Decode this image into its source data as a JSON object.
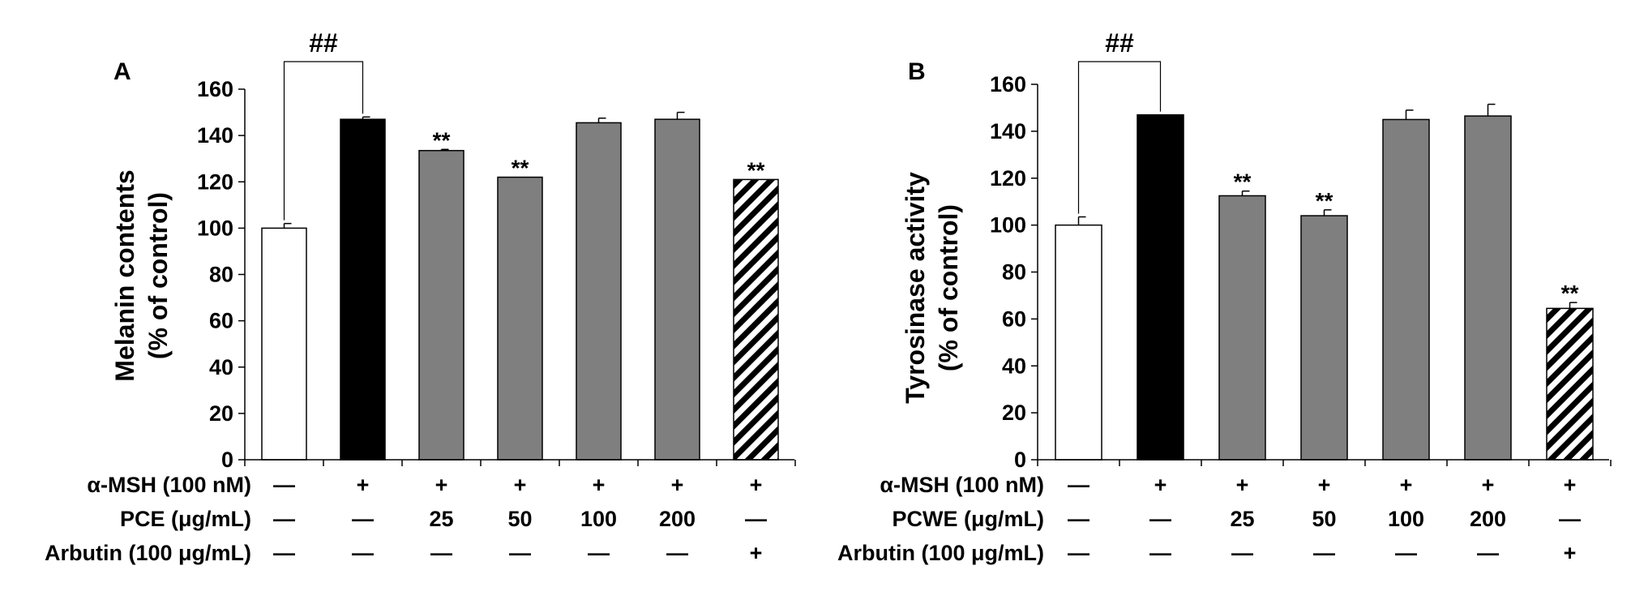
{
  "chart_data": [
    {
      "type": "bar",
      "panel_label": "A",
      "ylabel_line1": "Melanin contents",
      "ylabel_line2": "(% of control)",
      "ylim": [
        0,
        160
      ],
      "yticks": [
        "0",
        "20",
        "40",
        "60",
        "80",
        "100",
        "120",
        "140",
        "160"
      ],
      "values": [
        100,
        147,
        133.5,
        122,
        145.5,
        147,
        121
      ],
      "errors": [
        2,
        1,
        0.5,
        0,
        2,
        3,
        0
      ],
      "fills": [
        "white",
        "black",
        "gray",
        "gray",
        "gray",
        "gray",
        "hatch"
      ],
      "significance": [
        "",
        "",
        "**",
        "**",
        "",
        "",
        "**"
      ],
      "bracket_label": "##",
      "bracket_pair": [
        0,
        1
      ],
      "rows": [
        {
          "label": "α-MSH (100 nM)",
          "cells": [
            "—",
            "+",
            "+",
            "+",
            "+",
            "+",
            "+"
          ]
        },
        {
          "label": "PCE (μg/mL)",
          "cells": [
            "—",
            "—",
            "25",
            "50",
            "100",
            "200",
            "—"
          ]
        },
        {
          "label": "Arbutin (100 μg/mL)",
          "cells": [
            "—",
            "—",
            "—",
            "—",
            "—",
            "—",
            "+"
          ]
        }
      ]
    },
    {
      "type": "bar",
      "panel_label": "B",
      "ylabel_line1": "Tyrosinase activity",
      "ylabel_line2": "(% of control)",
      "ylim": [
        0,
        160
      ],
      "yticks": [
        "0",
        "20",
        "40",
        "60",
        "80",
        "100",
        "120",
        "140",
        "160"
      ],
      "values": [
        100,
        147,
        112.5,
        104,
        145,
        146.5,
        64.5
      ],
      "errors": [
        3.5,
        0,
        2,
        2.5,
        4,
        5,
        2.5
      ],
      "fills": [
        "white",
        "black",
        "gray",
        "gray",
        "gray",
        "gray",
        "hatch"
      ],
      "significance": [
        "",
        "",
        "**",
        "**",
        "",
        "",
        "**"
      ],
      "bracket_label": "##",
      "bracket_pair": [
        0,
        1
      ],
      "rows": [
        {
          "label": "α-MSH (100 nM)",
          "cells": [
            "—",
            "+",
            "+",
            "+",
            "+",
            "+",
            "+"
          ]
        },
        {
          "label": "PCWE (μg/mL)",
          "cells": [
            "—",
            "—",
            "25",
            "50",
            "100",
            "200",
            "—"
          ]
        },
        {
          "label": "Arbutin (100 μg/mL)",
          "cells": [
            "—",
            "—",
            "—",
            "—",
            "—",
            "—",
            "+"
          ]
        }
      ]
    }
  ],
  "colors": {
    "axis": "#000000",
    "black_bar": "#000000",
    "gray_bar": "#7f7f7f",
    "white_bar": "#ffffff",
    "hatch": "#000000"
  }
}
